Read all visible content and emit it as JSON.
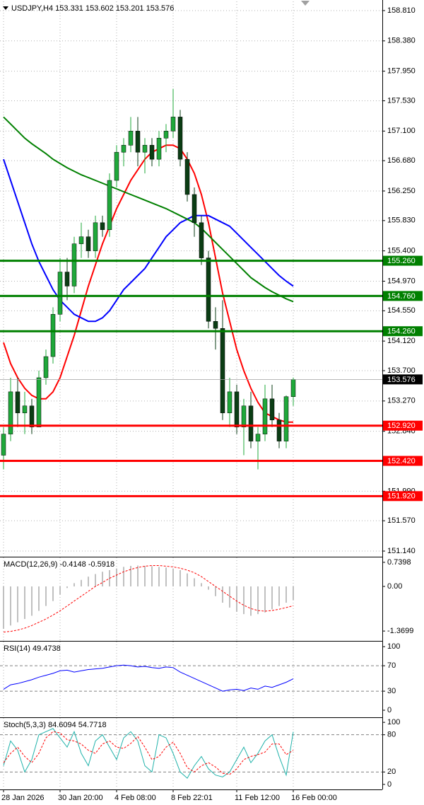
{
  "chart_data": [
    {
      "type": "candlestick",
      "title": "USDJPY,H4  153.331 153.602 153.201 153.576",
      "categories": [
        "28 Jan 2026",
        null,
        null,
        null,
        null,
        null,
        null,
        null,
        "30 Jan 20:00",
        null,
        null,
        null,
        null,
        null,
        null,
        null,
        "4 Feb 08:00",
        null,
        null,
        null,
        null,
        null,
        null,
        null,
        "8 Feb 22:01",
        null,
        null,
        null,
        null,
        null,
        null,
        null,
        null,
        "11 Feb 12:00",
        null,
        null,
        null,
        null,
        null,
        null,
        null,
        "16 Feb 00:00"
      ],
      "open": [
        152.5,
        152.8,
        153.4,
        153.1,
        153.2,
        152.9,
        153.6,
        153.9,
        154.5,
        155.1,
        154.9,
        155.5,
        155.6,
        155.4,
        155.8,
        155.7,
        156.4,
        156.8,
        156.9,
        157.1,
        156.8,
        156.9,
        156.7,
        157.0,
        157.1,
        157.3,
        156.7,
        156.2,
        155.8,
        155.3,
        154.4,
        154.3,
        153.1,
        153.4,
        152.9,
        153.2,
        152.7,
        152.8,
        153.3,
        153.0,
        152.7,
        153.331
      ],
      "high": [
        152.9,
        153.6,
        153.6,
        153.4,
        153.3,
        153.7,
        154.0,
        154.6,
        155.3,
        155.3,
        155.6,
        155.8,
        155.7,
        155.9,
        155.9,
        156.5,
        156.9,
        157.0,
        157.3,
        157.3,
        157.0,
        157.0,
        157.1,
        157.2,
        157.7,
        157.4,
        156.8,
        156.3,
        155.9,
        155.4,
        154.6,
        154.7,
        153.6,
        153.5,
        153.3,
        153.4,
        152.9,
        153.5,
        153.5,
        153.1,
        153.35,
        153.602
      ],
      "low": [
        152.3,
        152.7,
        152.9,
        152.8,
        152.8,
        152.9,
        153.5,
        153.8,
        154.4,
        154.7,
        154.8,
        155.3,
        155.3,
        155.3,
        155.6,
        155.6,
        156.3,
        156.6,
        156.8,
        156.6,
        156.5,
        156.6,
        156.6,
        156.8,
        157.0,
        156.6,
        156.1,
        155.6,
        155.2,
        154.3,
        154.0,
        153.0,
        152.9,
        152.8,
        152.5,
        152.6,
        152.3,
        152.7,
        152.9,
        152.6,
        152.6,
        153.201
      ],
      "close": [
        152.8,
        153.4,
        153.1,
        153.2,
        152.9,
        153.6,
        153.9,
        154.5,
        155.1,
        154.9,
        155.5,
        155.6,
        155.4,
        155.8,
        155.7,
        156.4,
        156.8,
        156.9,
        157.1,
        156.8,
        156.9,
        156.7,
        157.0,
        157.1,
        157.3,
        156.7,
        156.2,
        155.8,
        155.3,
        154.4,
        154.3,
        153.1,
        153.4,
        152.9,
        153.2,
        152.7,
        152.8,
        153.3,
        153.0,
        152.7,
        153.331,
        153.576
      ],
      "up_color": "#1fa83a",
      "down_color": "#0b3d14",
      "series": [
        {
          "color": "#ff0000",
          "values": [
            154.1,
            153.8,
            153.6,
            153.45,
            153.35,
            153.3,
            153.3,
            153.4,
            153.6,
            153.9,
            154.2,
            154.55,
            154.9,
            155.2,
            155.5,
            155.75,
            156.0,
            156.2,
            156.4,
            156.55,
            156.7,
            156.8,
            156.85,
            156.9,
            156.9,
            156.85,
            156.7,
            156.5,
            156.2,
            155.8,
            155.3,
            154.8,
            154.4,
            154.0,
            153.7,
            153.45,
            153.25,
            153.1,
            153.05,
            153.0,
            152.97,
            152.97
          ]
        },
        {
          "color": "#0000ff",
          "values": [
            156.7,
            156.4,
            156.1,
            155.8,
            155.5,
            155.25,
            155.05,
            154.85,
            154.7,
            154.6,
            154.5,
            154.45,
            154.4,
            154.4,
            154.45,
            154.55,
            154.7,
            154.85,
            154.95,
            155.05,
            155.15,
            155.3,
            155.45,
            155.6,
            155.7,
            155.8,
            155.85,
            155.9,
            155.9,
            155.9,
            155.85,
            155.8,
            155.75,
            155.65,
            155.55,
            155.45,
            155.35,
            155.25,
            155.15,
            155.05,
            154.97,
            154.9
          ]
        },
        {
          "color": "#008000",
          "values": [
            157.3,
            157.2,
            157.1,
            157.0,
            156.92,
            156.85,
            156.78,
            156.7,
            156.64,
            156.58,
            156.53,
            156.48,
            156.44,
            156.4,
            156.36,
            156.32,
            156.28,
            156.24,
            156.2,
            156.16,
            156.12,
            156.08,
            156.04,
            156.0,
            155.95,
            155.9,
            155.85,
            155.8,
            155.72,
            155.62,
            155.52,
            155.42,
            155.32,
            155.22,
            155.12,
            155.02,
            154.95,
            154.88,
            154.82,
            154.77,
            154.72,
            154.68
          ]
        }
      ],
      "levels": [
        {
          "value": 155.26,
          "label": "155.260",
          "color": "#008000"
        },
        {
          "value": 154.76,
          "label": "154.760",
          "color": "#008000"
        },
        {
          "value": 154.26,
          "label": "154.260",
          "color": "#008000"
        },
        {
          "value": 152.92,
          "label": "152.920",
          "color": "#ff0000"
        },
        {
          "value": 152.42,
          "label": "152.420",
          "color": "#ff0000"
        },
        {
          "value": 151.92,
          "label": "151.920",
          "color": "#ff0000"
        }
      ],
      "last_price": {
        "value": 153.576,
        "label": "153.576"
      },
      "ylim": [
        151.08,
        158.94
      ],
      "yticks": [
        {
          "value": 158.81,
          "label": "158.810"
        },
        {
          "value": 158.38,
          "label": "158.380"
        },
        {
          "value": 157.95,
          "label": "157.950"
        },
        {
          "value": 157.53,
          "label": "157.530"
        },
        {
          "value": 157.1,
          "label": "157.100"
        },
        {
          "value": 156.68,
          "label": "156.680"
        },
        {
          "value": 156.25,
          "label": "156.250"
        },
        {
          "value": 155.83,
          "label": "155.830"
        },
        {
          "value": 155.4,
          "label": "155.400"
        },
        {
          "value": 154.97,
          "label": "154.970"
        },
        {
          "value": 154.55,
          "label": "154.550"
        },
        {
          "value": 154.12,
          "label": "154.120"
        },
        {
          "value": 153.7,
          "label": "153.700"
        },
        {
          "value": 153.27,
          "label": "153.270"
        },
        {
          "value": 152.84,
          "label": "152.840"
        },
        {
          "value": 151.99,
          "label": "151.990"
        },
        {
          "value": 151.57,
          "label": "151.570"
        },
        {
          "value": 151.14,
          "label": "151.140"
        }
      ],
      "grid": true
    },
    {
      "type": "macd",
      "title": "MACD(12,26,9) -0.4148 -0.5918",
      "histogram": {
        "color": "#c0c0c0",
        "values": [
          -1.3,
          -1.2,
          -1.1,
          -1.0,
          -0.9,
          -0.75,
          -0.6,
          -0.45,
          -0.25,
          -0.05,
          0.1,
          0.2,
          0.3,
          0.38,
          0.45,
          0.5,
          0.55,
          0.6,
          0.63,
          0.64,
          0.63,
          0.62,
          0.6,
          0.58,
          0.55,
          0.5,
          0.4,
          0.25,
          0.1,
          -0.1,
          -0.3,
          -0.5,
          -0.65,
          -0.78,
          -0.85,
          -0.9,
          -0.85,
          -0.8,
          -0.7,
          -0.6,
          -0.5,
          -0.4148
        ]
      },
      "signal": {
        "color": "#ff0000",
        "values": [
          -1.4,
          -1.38,
          -1.34,
          -1.28,
          -1.2,
          -1.1,
          -1.0,
          -0.88,
          -0.75,
          -0.6,
          -0.45,
          -0.3,
          -0.15,
          0.0,
          0.12,
          0.25,
          0.35,
          0.45,
          0.52,
          0.58,
          0.62,
          0.64,
          0.64,
          0.62,
          0.6,
          0.56,
          0.5,
          0.42,
          0.3,
          0.15,
          0.0,
          -0.15,
          -0.3,
          -0.45,
          -0.58,
          -0.68,
          -0.74,
          -0.76,
          -0.74,
          -0.7,
          -0.65,
          -0.5918
        ]
      },
      "ylim": [
        -1.65,
        0.89
      ],
      "yticks": [
        0.7398,
        {
          "value": 0,
          "label": "0.00"
        },
        -1.3699
      ],
      "grid": true
    },
    {
      "type": "line",
      "title": "RSI(14) 49.4738",
      "series": [
        {
          "color": "#0000ff",
          "values": [
            33,
            40,
            42,
            45,
            48,
            52,
            55,
            58,
            62,
            63,
            60,
            62,
            64,
            65,
            66,
            68,
            70,
            71,
            70,
            68,
            69,
            67,
            66,
            68,
            67,
            60,
            55,
            50,
            45,
            40,
            35,
            30,
            32,
            33,
            31,
            35,
            33,
            38,
            36,
            40,
            44,
            49.4738
          ]
        }
      ],
      "ylim": [
        -10,
        108
      ],
      "yticks": [
        100,
        70,
        30,
        0
      ],
      "grid": true
    },
    {
      "type": "line",
      "title": "Stoch(5,3,3) 84.6094 54.7718",
      "series": [
        {
          "color": "#20b2aa",
          "values": [
            30,
            70,
            55,
            20,
            40,
            80,
            85,
            90,
            75,
            60,
            85,
            50,
            30,
            70,
            80,
            60,
            40,
            75,
            85,
            70,
            30,
            20,
            80,
            75,
            50,
            20,
            10,
            30,
            45,
            25,
            15,
            12,
            20,
            40,
            60,
            35,
            50,
            70,
            80,
            45,
            15,
            84.6094
          ]
        },
        {
          "color": "#ff0000",
          "dashed": true,
          "values": [
            35,
            50,
            60,
            45,
            35,
            50,
            75,
            85,
            83,
            72,
            70,
            65,
            55,
            50,
            65,
            70,
            60,
            58,
            66,
            77,
            60,
            40,
            45,
            60,
            68,
            50,
            27,
            20,
            30,
            35,
            28,
            18,
            16,
            25,
            40,
            45,
            48,
            52,
            65,
            65,
            48,
            54.7718
          ]
        }
      ],
      "ylim": [
        -7,
        107
      ],
      "yticks": [
        100,
        80,
        20,
        0
      ],
      "grid": true
    }
  ]
}
